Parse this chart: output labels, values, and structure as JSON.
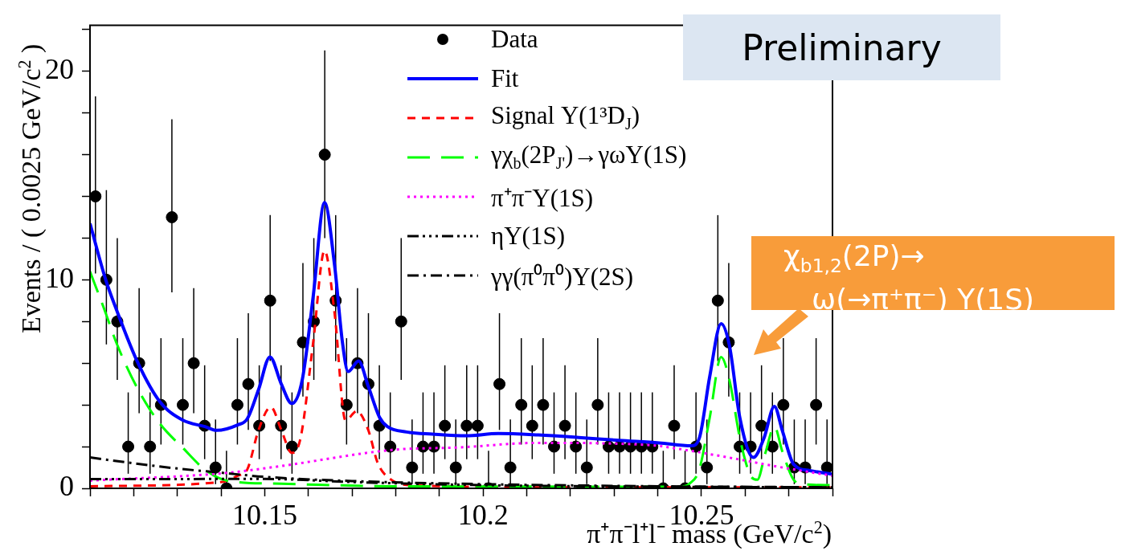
{
  "chart_data": {
    "type": "scatter",
    "xlabel": "π⁺π⁻l⁺l⁻ mass (GeV/c$^{2}$)",
    "ylabel": "Events / ( 0.0025 GeV/c$^{2}$ )",
    "xlim": [
      10.11,
      10.28
    ],
    "ylim": [
      0,
      22.2
    ],
    "xticks": [
      {
        "value": 10.11,
        "label": null
      },
      {
        "value": 10.12,
        "label": null
      },
      {
        "value": 10.13,
        "label": null
      },
      {
        "value": 10.14,
        "label": null
      },
      {
        "value": 10.15,
        "label": "10.15"
      },
      {
        "value": 10.16,
        "label": null
      },
      {
        "value": 10.17,
        "label": null
      },
      {
        "value": 10.18,
        "label": null
      },
      {
        "value": 10.19,
        "label": null
      },
      {
        "value": 10.2,
        "label": "10.2"
      },
      {
        "value": 10.21,
        "label": null
      },
      {
        "value": 10.22,
        "label": null
      },
      {
        "value": 10.23,
        "label": null
      },
      {
        "value": 10.24,
        "label": null
      },
      {
        "value": 10.25,
        "label": "10.25"
      },
      {
        "value": 10.26,
        "label": null
      },
      {
        "value": 10.27,
        "label": null
      },
      {
        "value": 10.28,
        "label": null
      }
    ],
    "yticks": [
      0,
      {
        "value": 2,
        "label": null
      },
      {
        "value": 4,
        "label": null
      },
      {
        "value": 6,
        "label": null
      },
      {
        "value": 8,
        "label": null
      },
      10,
      {
        "value": 12,
        "label": null
      },
      {
        "value": 14,
        "label": null
      },
      {
        "value": 16,
        "label": null
      },
      {
        "value": 18,
        "label": null
      },
      20,
      {
        "value": 22,
        "label": null
      }
    ],
    "legend": "top",
    "annotations": [
      "Preliminary",
      "χ$_{b1,2}$(2P)→ ω(→π⁺π⁻) Υ(1S)"
    ],
    "series": [
      {
        "name": "Data",
        "type": "scatter",
        "color": "#000000",
        "marker": "circle",
        "x": [
          10.11125,
          10.11375,
          10.11625,
          10.11875,
          10.12125,
          10.12375,
          10.12625,
          10.12875,
          10.13125,
          10.13375,
          10.13625,
          10.13875,
          10.14125,
          10.14375,
          10.14625,
          10.14875,
          10.15125,
          10.15375,
          10.15625,
          10.15875,
          10.16125,
          10.16375,
          10.16625,
          10.16875,
          10.17125,
          10.17375,
          10.17625,
          10.17875,
          10.18125,
          10.18375,
          10.18625,
          10.18875,
          10.19125,
          10.19375,
          10.19625,
          10.19875,
          10.20125,
          10.20375,
          10.20625,
          10.20875,
          10.21125,
          10.21375,
          10.21625,
          10.21875,
          10.22125,
          10.22375,
          10.22625,
          10.22875,
          10.23125,
          10.23375,
          10.23625,
          10.23875,
          10.24125,
          10.24375,
          10.24625,
          10.24875,
          10.25125,
          10.25375,
          10.25625,
          10.25875,
          10.26125,
          10.26375,
          10.26625,
          10.26875,
          10.27125,
          10.27375,
          10.27625,
          10.27875
        ],
        "values": [
          14,
          10,
          8,
          2,
          6,
          2,
          4,
          13,
          4,
          6,
          3,
          1,
          0,
          4,
          5,
          3,
          9,
          3,
          2,
          7,
          8,
          16,
          9,
          4,
          6,
          5,
          3,
          2,
          8,
          1,
          2,
          2,
          3,
          1,
          3,
          3,
          0,
          5,
          1,
          4,
          3,
          4,
          2,
          3,
          2,
          1,
          4,
          2,
          2,
          2,
          2,
          2,
          0,
          3,
          0,
          2,
          1,
          9,
          7,
          2,
          2,
          3,
          2,
          4,
          1,
          1,
          4,
          1
        ],
        "errors": [
          [
            10.3,
            18.8
          ],
          [
            6.9,
            14.3
          ],
          [
            5.2,
            12.0
          ],
          [
            0.7,
            4.6
          ],
          [
            3.6,
            9.6
          ],
          [
            0.7,
            4.6
          ],
          [
            2.1,
            7.2
          ],
          [
            9.4,
            17.7
          ],
          [
            2.1,
            7.2
          ],
          [
            3.6,
            9.6
          ],
          [
            1.4,
            5.9
          ],
          [
            0.2,
            3.3
          ],
          [
            0,
            1.8
          ],
          [
            2.1,
            7.2
          ],
          [
            2.8,
            8.4
          ],
          [
            1.4,
            5.9
          ],
          [
            6.1,
            13.1
          ],
          [
            1.4,
            5.9
          ],
          [
            0.7,
            4.6
          ],
          [
            4.4,
            10.8
          ],
          [
            5.2,
            12.0
          ],
          [
            12.0,
            21.0
          ],
          [
            6.1,
            13.1
          ],
          [
            2.1,
            7.2
          ],
          [
            3.6,
            9.6
          ],
          [
            2.8,
            8.4
          ],
          [
            1.4,
            5.9
          ],
          [
            0.7,
            4.6
          ],
          [
            5.2,
            12.0
          ],
          [
            0.2,
            3.3
          ],
          [
            0.7,
            4.6
          ],
          [
            0.7,
            4.6
          ],
          [
            1.4,
            5.9
          ],
          [
            0.2,
            3.3
          ],
          [
            1.4,
            5.9
          ],
          [
            1.4,
            5.9
          ],
          [
            0,
            1.8
          ],
          [
            2.8,
            8.4
          ],
          [
            0.2,
            3.3
          ],
          [
            2.1,
            7.2
          ],
          [
            1.4,
            5.9
          ],
          [
            2.1,
            7.2
          ],
          [
            0.7,
            4.6
          ],
          [
            1.4,
            5.9
          ],
          [
            0.7,
            4.6
          ],
          [
            0.2,
            3.3
          ],
          [
            2.1,
            7.2
          ],
          [
            0.7,
            4.6
          ],
          [
            0.7,
            4.6
          ],
          [
            0.7,
            4.6
          ],
          [
            0.7,
            4.6
          ],
          [
            0.7,
            4.6
          ],
          [
            0,
            1.8
          ],
          [
            1.4,
            5.9
          ],
          [
            0,
            1.8
          ],
          [
            0.7,
            4.6
          ],
          [
            0.2,
            3.3
          ],
          [
            6.1,
            13.1
          ],
          [
            4.4,
            10.8
          ],
          [
            0.7,
            4.6
          ],
          [
            0.7,
            4.6
          ],
          [
            1.4,
            5.9
          ],
          [
            0.7,
            4.6
          ],
          [
            2.1,
            7.2
          ],
          [
            0.2,
            3.3
          ],
          [
            0.2,
            3.3
          ],
          [
            2.1,
            7.2
          ],
          [
            0.2,
            3.3
          ]
        ]
      },
      {
        "name": "Fit",
        "type": "line",
        "color": "#0000ff",
        "line_style": "solid",
        "x": [
          10.11,
          10.1136,
          10.116,
          10.121,
          10.126,
          10.1313,
          10.1363,
          10.139,
          10.1438,
          10.146,
          10.1486,
          10.1512,
          10.1538,
          10.1562,
          10.1586,
          10.1611,
          10.1637,
          10.166,
          10.1678,
          10.1691,
          10.1715,
          10.1737,
          10.1763,
          10.1781,
          10.1825,
          10.1884,
          10.1961,
          10.2035,
          10.2127,
          10.2219,
          10.2311,
          10.2403,
          10.2477,
          10.2495,
          10.2519,
          10.2545,
          10.2564,
          10.2588,
          10.2619,
          10.2643,
          10.2667,
          10.2685,
          10.2711,
          10.2748,
          10.28
        ],
        "values": [
          12.7,
          10.0,
          8.6,
          6.0,
          4.15,
          3.26,
          2.96,
          2.78,
          3.04,
          3.33,
          4.74,
          6.3,
          5.0,
          4.07,
          5.2,
          9.2,
          13.7,
          10.7,
          7.0,
          5.6,
          6.1,
          4.9,
          3.4,
          2.96,
          2.7,
          2.6,
          2.52,
          2.63,
          2.56,
          2.44,
          2.3,
          2.18,
          2.04,
          2.4,
          5.37,
          7.9,
          6.85,
          3.37,
          1.48,
          2.4,
          3.93,
          2.78,
          1.15,
          0.85,
          0.67
        ]
      },
      {
        "name": "Signal Υ(1³D$_{J}$)",
        "type": "line",
        "color": "#ff0000",
        "line_style": "dashed",
        "x": [
          10.11,
          10.14,
          10.1438,
          10.146,
          10.1486,
          10.1514,
          10.1538,
          10.1562,
          10.1582,
          10.1611,
          10.1637,
          10.166,
          10.1685,
          10.1711,
          10.1737,
          10.1759,
          10.1788,
          10.1832,
          10.22,
          10.28
        ],
        "values": [
          0.1,
          0.3,
          0.6,
          0.9,
          2.8,
          3.9,
          2.8,
          1.7,
          2.4,
          7.0,
          11.4,
          8.4,
          3.26,
          3.7,
          2.8,
          1.2,
          0.44,
          0.15,
          0.05,
          0.05
        ]
      },
      {
        "name": "γχ$_{b}$(2P$_{J'}$)→γωΥ(1S)",
        "type": "line",
        "color": "#00ff00",
        "line_style": "long_dashed",
        "x": [
          10.11,
          10.1136,
          10.116,
          10.121,
          10.126,
          10.1313,
          10.1363,
          10.1413,
          10.1538,
          10.1796,
          10.245,
          10.2471,
          10.2495,
          10.2519,
          10.2545,
          10.2564,
          10.2588,
          10.2611,
          10.2628,
          10.2646,
          10.2667,
          10.2685,
          10.2711,
          10.2735,
          10.28
        ],
        "values": [
          10.4,
          8.4,
          7.0,
          4.74,
          3.1,
          1.93,
          0.9,
          0.37,
          0.22,
          0.1,
          0.08,
          0.2,
          0.9,
          3.4,
          6.3,
          5.2,
          2.4,
          0.67,
          0.41,
          1.67,
          2.96,
          1.78,
          0.41,
          0.19,
          0.15
        ]
      },
      {
        "name": "π⁺π⁻Υ(1S)",
        "type": "line",
        "color": "#ff00ff",
        "line_style": "dotted",
        "x": [
          10.11,
          10.1413,
          10.1538,
          10.1796,
          10.1943,
          10.2127,
          10.2385,
          10.2427,
          10.2551,
          10.2674,
          10.28
        ],
        "values": [
          0.37,
          0.74,
          1.07,
          1.85,
          1.96,
          2.18,
          2.07,
          1.96,
          1.52,
          1.04,
          0.6
        ]
      },
      {
        "name": "ηΥ(1S)",
        "type": "line",
        "color": "#000000",
        "line_style": "dashdotdot",
        "x": [
          10.11,
          10.15,
          10.17,
          10.2,
          10.24,
          10.28
        ],
        "values": [
          0.44,
          0.45,
          0.3,
          0.15,
          0.08,
          0.05
        ]
      },
      {
        "name": "γγ(π⁰π⁰)Υ(2S)",
        "type": "line",
        "color": "#000000",
        "line_style": "dashdot",
        "x": [
          10.11,
          10.12,
          10.13,
          10.14,
          10.15,
          10.17,
          10.2,
          10.24,
          10.28
        ],
        "values": [
          1.48,
          1.2,
          0.95,
          0.75,
          0.55,
          0.35,
          0.2,
          0.1,
          0.05
        ]
      }
    ]
  }
}
